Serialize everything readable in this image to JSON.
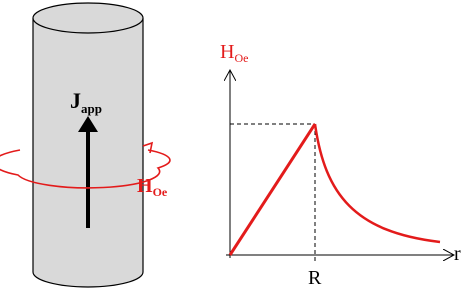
{
  "cylinder": {
    "current_label": {
      "main": "J",
      "sub": "app"
    },
    "field_label": {
      "main": "H",
      "sub": "Oe"
    }
  },
  "graph": {
    "y_label": {
      "main": "H",
      "sub": "Oe"
    },
    "x_label": "r",
    "tick_label": "R"
  }
}
